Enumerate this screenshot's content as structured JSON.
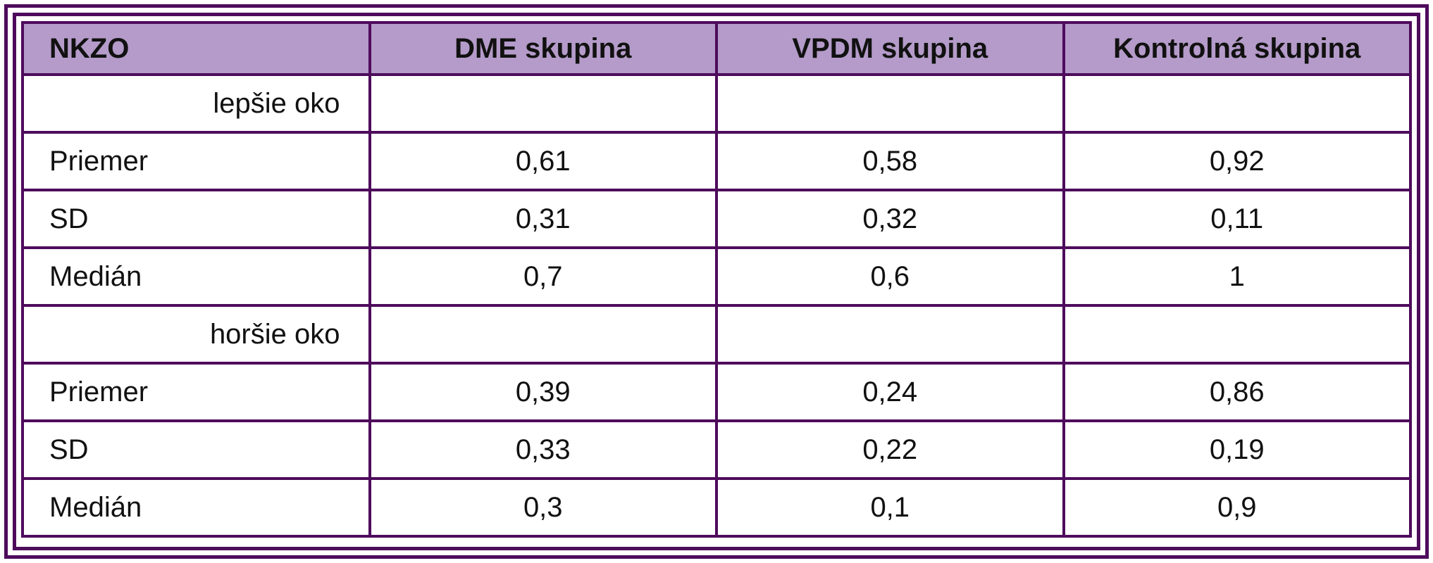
{
  "table": {
    "header": [
      "NKZO",
      "DME skupina",
      "VPDM skupina",
      "Kontrolná skupina"
    ],
    "rows": [
      [
        "lepšie oko"
      ],
      [
        "Priemer",
        "0,61",
        "0,58",
        "0,92"
      ],
      [
        "SD",
        "0,31",
        "0,32",
        "0,11"
      ],
      [
        "Medián",
        "0,7",
        "0,6",
        "1"
      ],
      [
        "horšie oko"
      ],
      [
        "Priemer",
        "0,39",
        "0,24",
        "0,86"
      ],
      [
        "SD",
        "0,33",
        "0,22",
        "0,19"
      ],
      [
        "Medián",
        "0,3",
        "0,1",
        "0,9"
      ]
    ]
  }
}
